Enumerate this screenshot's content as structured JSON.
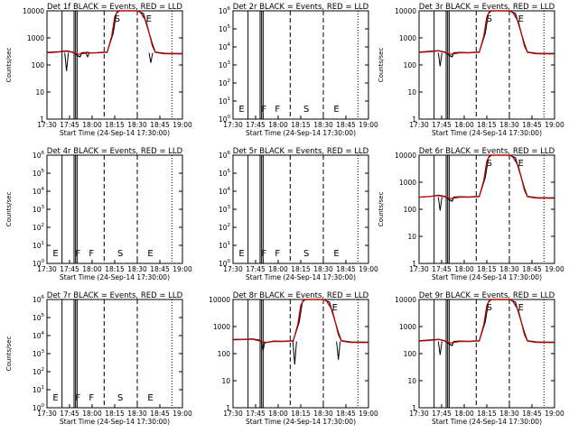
{
  "chart_data": [
    {
      "type": "line",
      "title": "Det 1f BLACK = Events, RED = LLD",
      "xlabel": "Start Time (24-Sep-14 17:30:00)",
      "ylabel": "Counts/sec",
      "yscale": "log",
      "ylim": [
        1,
        10000
      ],
      "ytick_labels": [
        "1",
        "10",
        "100",
        "1000",
        "10000"
      ],
      "has_data": true,
      "event_labels": [
        "S",
        "E"
      ],
      "series": [
        {
          "name": "Events",
          "color": "#000000",
          "points": [
            [
              0,
              290
            ],
            [
              8,
              310
            ],
            [
              13,
              330
            ],
            [
              17,
              300
            ],
            [
              21,
              210
            ],
            [
              22,
              200
            ],
            [
              23,
              280
            ],
            [
              27,
              290
            ],
            [
              29,
              280
            ],
            [
              33,
              285
            ],
            [
              36,
              290
            ],
            [
              40,
              300
            ],
            [
              44,
              1500
            ],
            [
              46,
              8000
            ],
            [
              48,
              10000
            ],
            [
              60,
              10000
            ],
            [
              64,
              8000
            ],
            [
              70,
              600
            ],
            [
              72,
              300
            ],
            [
              78,
              270
            ],
            [
              90,
              265
            ]
          ]
        },
        {
          "name": "LLD",
          "color": "#cc0000",
          "points": [
            [
              0,
              280
            ],
            [
              8,
              300
            ],
            [
              13,
              320
            ],
            [
              17,
              290
            ],
            [
              21,
              250
            ],
            [
              27,
              280
            ],
            [
              33,
              280
            ],
            [
              40,
              290
            ],
            [
              43,
              1200
            ],
            [
              45,
              6000
            ],
            [
              47,
              10000
            ],
            [
              60,
              10000
            ],
            [
              62,
              9000
            ],
            [
              66,
              4000
            ],
            [
              70,
              500
            ],
            [
              72,
              290
            ],
            [
              78,
              260
            ],
            [
              90,
              255
            ]
          ]
        }
      ],
      "notches": [
        {
          "x": 13,
          "y": 60
        },
        {
          "x": 27,
          "y": 200
        },
        {
          "x": 69,
          "y": 120
        }
      ],
      "x_labels": [
        "17:30",
        "17:45",
        "18:00",
        "18:15",
        "18:30",
        "18:45",
        "19:00"
      ]
    },
    {
      "type": "line",
      "title": "Det 2r BLACK = Events, RED = LLD",
      "xlabel": "Start Time (24-Sep-14 17:30:00)",
      "ylabel": "",
      "yscale": "log",
      "ylim": [
        1,
        1000000
      ],
      "ytick_labels": [
        "10^0",
        "10^1",
        "10^2",
        "10^3",
        "10^4",
        "10^5",
        "10^6"
      ],
      "has_data": false,
      "event_labels": [
        "E",
        "F",
        "F",
        "S",
        "E"
      ],
      "series": [],
      "notches": [],
      "x_labels": [
        "17:30",
        "17:45",
        "18:00",
        "18:15",
        "18:30",
        "18:45",
        "19:00"
      ]
    },
    {
      "type": "line",
      "title": "Det 3r BLACK = Events, RED = LLD",
      "xlabel": "Start Time (24-Sep-14 17:30:00)",
      "ylabel": "Counts/sec",
      "yscale": "log",
      "ylim": [
        1,
        10000
      ],
      "ytick_labels": [
        "1",
        "10",
        "100",
        "1000",
        "10000"
      ],
      "has_data": true,
      "event_labels": [
        "S",
        "E"
      ],
      "series": [
        {
          "name": "Events",
          "color": "#000000",
          "points": [
            [
              0,
              300
            ],
            [
              8,
              320
            ],
            [
              13,
              340
            ],
            [
              17,
              300
            ],
            [
              21,
              210
            ],
            [
              22,
              200
            ],
            [
              23,
              280
            ],
            [
              27,
              290
            ],
            [
              33,
              285
            ],
            [
              40,
              300
            ],
            [
              44,
              1500
            ],
            [
              46,
              8000
            ],
            [
              48,
              10000
            ],
            [
              60,
              10000
            ],
            [
              64,
              8000
            ],
            [
              70,
              600
            ],
            [
              72,
              300
            ],
            [
              78,
              270
            ],
            [
              90,
              265
            ]
          ]
        },
        {
          "name": "LLD",
          "color": "#cc0000",
          "points": [
            [
              0,
              290
            ],
            [
              8,
              310
            ],
            [
              13,
              330
            ],
            [
              17,
              290
            ],
            [
              21,
              250
            ],
            [
              27,
              280
            ],
            [
              33,
              280
            ],
            [
              40,
              290
            ],
            [
              43,
              1200
            ],
            [
              45,
              6000
            ],
            [
              47,
              10000
            ],
            [
              60,
              10000
            ],
            [
              62,
              9000
            ],
            [
              66,
              4000
            ],
            [
              70,
              500
            ],
            [
              72,
              290
            ],
            [
              78,
              260
            ],
            [
              90,
              255
            ]
          ]
        }
      ],
      "notches": [
        {
          "x": 14,
          "y": 90
        }
      ],
      "x_labels": [
        "17:30",
        "17:45",
        "18:00",
        "18:15",
        "18:30",
        "18:45",
        "19:00"
      ]
    },
    {
      "type": "line",
      "title": "Det 4r BLACK = Events, RED = LLD",
      "xlabel": "",
      "ylabel": "Counts/sec",
      "yscale": "log",
      "ylim": [
        1,
        1000000
      ],
      "ytick_labels": [
        "10^0",
        "10^1",
        "10^2",
        "10^3",
        "10^4",
        "10^5",
        "10^6"
      ],
      "has_data": false,
      "event_labels": [
        "E",
        "F",
        "F",
        "S",
        "E"
      ],
      "series": [],
      "notches": [],
      "x_labels": [
        "17:30",
        "17:45",
        "18:00",
        "18:15",
        "18:30",
        "18:45",
        "19:00"
      ]
    },
    {
      "type": "line",
      "title": "Det 5r BLACK = Events, RED = LLD",
      "xlabel": "",
      "ylabel": "",
      "yscale": "log",
      "ylim": [
        1,
        1000000
      ],
      "ytick_labels": [
        "10^0",
        "10^1",
        "10^2",
        "10^3",
        "10^4",
        "10^5",
        "10^6"
      ],
      "has_data": false,
      "event_labels": [
        "E",
        "F",
        "F",
        "S",
        "E"
      ],
      "series": [],
      "notches": [],
      "x_labels": [
        "17:30",
        "17:45",
        "18:00",
        "18:15",
        "18:30",
        "18:45",
        "19:00"
      ]
    },
    {
      "type": "line",
      "title": "Det 6r BLACK = Events, RED = LLD",
      "xlabel": "",
      "ylabel": "Counts/sec",
      "yscale": "log",
      "ylim": [
        1,
        10000
      ],
      "ytick_labels": [
        "1",
        "10",
        "100",
        "1000",
        "10000"
      ],
      "has_data": true,
      "event_labels": [
        "S",
        "E"
      ],
      "series": [
        {
          "name": "Events",
          "color": "#000000",
          "points": [
            [
              0,
              280
            ],
            [
              8,
              300
            ],
            [
              13,
              330
            ],
            [
              17,
              300
            ],
            [
              21,
              210
            ],
            [
              22,
              200
            ],
            [
              23,
              280
            ],
            [
              27,
              290
            ],
            [
              33,
              285
            ],
            [
              40,
              300
            ],
            [
              44,
              1500
            ],
            [
              46,
              8000
            ],
            [
              48,
              10000
            ],
            [
              60,
              10000
            ],
            [
              64,
              8000
            ],
            [
              70,
              600
            ],
            [
              72,
              300
            ],
            [
              78,
              270
            ],
            [
              90,
              265
            ]
          ]
        },
        {
          "name": "LLD",
          "color": "#cc0000",
          "points": [
            [
              0,
              280
            ],
            [
              8,
              300
            ],
            [
              13,
              320
            ],
            [
              17,
              290
            ],
            [
              21,
              250
            ],
            [
              27,
              280
            ],
            [
              33,
              280
            ],
            [
              40,
              290
            ],
            [
              43,
              1200
            ],
            [
              45,
              6000
            ],
            [
              47,
              10000
            ],
            [
              60,
              10000
            ],
            [
              62,
              9000
            ],
            [
              66,
              4000
            ],
            [
              70,
              500
            ],
            [
              72,
              290
            ],
            [
              78,
              260
            ],
            [
              90,
              255
            ]
          ]
        }
      ],
      "notches": [
        {
          "x": 14,
          "y": 90
        }
      ],
      "x_labels": [
        "17:30",
        "17:45",
        "18:00",
        "18:15",
        "18:30",
        "18:45",
        "19:00"
      ]
    },
    {
      "type": "line",
      "title": "Det 7r BLACK = Events, RED = LLD",
      "xlabel": "Start Time (24-Sep-14 17:30:00)",
      "ylabel": "Counts/sec",
      "yscale": "log",
      "ylim": [
        1,
        1000000
      ],
      "ytick_labels": [
        "10^0",
        "10^1",
        "10^2",
        "10^3",
        "10^4",
        "10^5",
        "10^6"
      ],
      "has_data": false,
      "event_labels": [
        "E",
        "F",
        "F",
        "S",
        "E"
      ],
      "series": [],
      "notches": [],
      "x_labels": [
        "17:30",
        "17:45",
        "18:00",
        "18:15",
        "18:30",
        "18:45",
        "19:00"
      ]
    },
    {
      "type": "line",
      "title": "Det 8r BLACK = Events, RED = LLD",
      "xlabel": "Start Time (24-Sep-14 17:30:00)",
      "ylabel": "",
      "yscale": "log",
      "ylim": [
        1,
        10000
      ],
      "ytick_labels": [
        "1",
        "10",
        "100",
        "1000",
        "10000"
      ],
      "has_data": true,
      "event_labels": [
        "E"
      ],
      "series": [
        {
          "name": "Events",
          "color": "#000000",
          "points": [
            [
              0,
              330
            ],
            [
              8,
              340
            ],
            [
              13,
              350
            ],
            [
              17,
              320
            ],
            [
              21,
              250
            ],
            [
              27,
              290
            ],
            [
              33,
              285
            ],
            [
              40,
              300
            ],
            [
              44,
              1500
            ],
            [
              46,
              8000
            ],
            [
              48,
              10000
            ],
            [
              60,
              10000
            ],
            [
              64,
              8000
            ],
            [
              70,
              600
            ],
            [
              72,
              300
            ],
            [
              78,
              270
            ],
            [
              90,
              265
            ]
          ]
        },
        {
          "name": "LLD",
          "color": "#cc0000",
          "points": [
            [
              0,
              320
            ],
            [
              8,
              330
            ],
            [
              13,
              340
            ],
            [
              17,
              300
            ],
            [
              21,
              260
            ],
            [
              27,
              280
            ],
            [
              33,
              280
            ],
            [
              40,
              290
            ],
            [
              43,
              1200
            ],
            [
              45,
              6000
            ],
            [
              47,
              10000
            ],
            [
              60,
              10000
            ],
            [
              62,
              9000
            ],
            [
              66,
              4000
            ],
            [
              70,
              500
            ],
            [
              72,
              290
            ],
            [
              78,
              260
            ],
            [
              90,
              255
            ]
          ]
        }
      ],
      "notches": [
        {
          "x": 20,
          "y": 130
        },
        {
          "x": 41,
          "y": 40
        },
        {
          "x": 70,
          "y": 60
        }
      ],
      "x_labels": [
        "17:30",
        "17:45",
        "18:00",
        "18:15",
        "18:30",
        "18:45",
        "19:00"
      ]
    },
    {
      "type": "line",
      "title": "Det 9r BLACK = Events, RED = LLD",
      "xlabel": "Start Time (24-Sep-14 17:30:00)",
      "ylabel": "",
      "yscale": "log",
      "ylim": [
        1,
        10000
      ],
      "ytick_labels": [
        "1",
        "10",
        "100",
        "1000",
        "10000"
      ],
      "has_data": true,
      "event_labels": [
        "S",
        "E"
      ],
      "series": [
        {
          "name": "Events",
          "color": "#000000",
          "points": [
            [
              0,
              300
            ],
            [
              8,
              320
            ],
            [
              13,
              340
            ],
            [
              17,
              300
            ],
            [
              21,
              210
            ],
            [
              22,
              200
            ],
            [
              23,
              280
            ],
            [
              27,
              290
            ],
            [
              33,
              285
            ],
            [
              40,
              300
            ],
            [
              44,
              1500
            ],
            [
              46,
              8000
            ],
            [
              48,
              10000
            ],
            [
              60,
              10000
            ],
            [
              64,
              8000
            ],
            [
              70,
              600
            ],
            [
              72,
              300
            ],
            [
              78,
              270
            ],
            [
              90,
              265
            ]
          ]
        },
        {
          "name": "LLD",
          "color": "#cc0000",
          "points": [
            [
              0,
              290
            ],
            [
              8,
              310
            ],
            [
              13,
              330
            ],
            [
              17,
              290
            ],
            [
              21,
              250
            ],
            [
              27,
              280
            ],
            [
              33,
              280
            ],
            [
              40,
              290
            ],
            [
              43,
              1200
            ],
            [
              45,
              6000
            ],
            [
              47,
              10000
            ],
            [
              60,
              10000
            ],
            [
              62,
              9000
            ],
            [
              66,
              4000
            ],
            [
              70,
              500
            ],
            [
              72,
              290
            ],
            [
              78,
              260
            ],
            [
              90,
              255
            ]
          ]
        }
      ],
      "notches": [
        {
          "x": 14,
          "y": 90
        }
      ],
      "x_labels": [
        "17:30",
        "17:45",
        "18:00",
        "18:15",
        "18:30",
        "18:45",
        "19:00"
      ]
    }
  ],
  "time_axis": {
    "start_minutes": 0,
    "end_minutes": 90,
    "tick_minutes": [
      0,
      15,
      30,
      45,
      60,
      75,
      90
    ]
  },
  "event_lines_minutes": {
    "solid": [
      10,
      18,
      20,
      19
    ],
    "dashed": [
      38,
      60
    ],
    "dotted": [
      83
    ]
  },
  "colors": {
    "events": "#000000",
    "lld": "#cc0000",
    "background": "#ffffff"
  }
}
